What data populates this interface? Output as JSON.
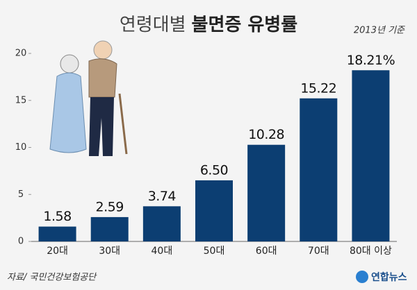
{
  "chart_data": {
    "type": "bar",
    "title": [
      "연령대별",
      "불면증 유병률"
    ],
    "subtitle": "2013년 기준",
    "categories": [
      "20대",
      "30대",
      "40대",
      "50대",
      "60대",
      "70대",
      "80대 이상"
    ],
    "values": [
      1.58,
      2.59,
      3.74,
      6.5,
      10.28,
      15.22,
      18.21
    ],
    "value_labels": [
      "1.58",
      "2.59",
      "3.74",
      "6.50",
      "10.28",
      "15.22",
      "18.21%"
    ],
    "color": "#0c3e72",
    "ylim": [
      0,
      20
    ],
    "yticks": [
      0,
      5,
      10,
      15,
      20
    ],
    "grid": false,
    "source": "자료/ 국민건강보험공단",
    "logo": "연합뉴스"
  }
}
